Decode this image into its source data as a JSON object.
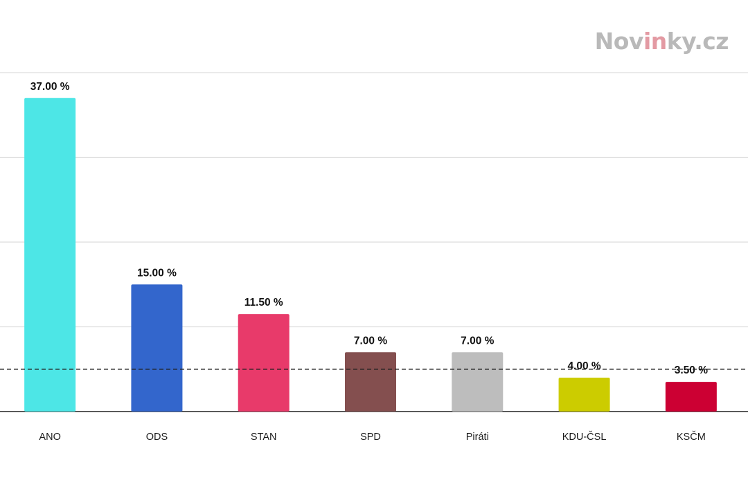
{
  "branding": {
    "logo_part1": "Nov",
    "logo_accent": "in",
    "logo_part2": "ky.cz"
  },
  "chart_data": {
    "type": "bar",
    "title": "",
    "xlabel": "",
    "ylabel": "",
    "ylim": [
      0,
      40
    ],
    "threshold": 5,
    "categories": [
      "ANO",
      "ODS",
      "STAN",
      "SPD",
      "Piráti",
      "KDU-ČSL",
      "KSČM"
    ],
    "values": [
      37.0,
      15.0,
      11.5,
      7.0,
      7.0,
      4.0,
      3.5
    ],
    "value_labels": [
      "37.00 %",
      "15.00 %",
      "11.50 %",
      "7.00 %",
      "7.00 %",
      "4.00 %",
      "3.50 %"
    ],
    "colors": [
      "#4de6e6",
      "#3366cc",
      "#e83a6a",
      "#844f4f",
      "#bdbdbd",
      "#cccc00",
      "#cc0033"
    ]
  }
}
